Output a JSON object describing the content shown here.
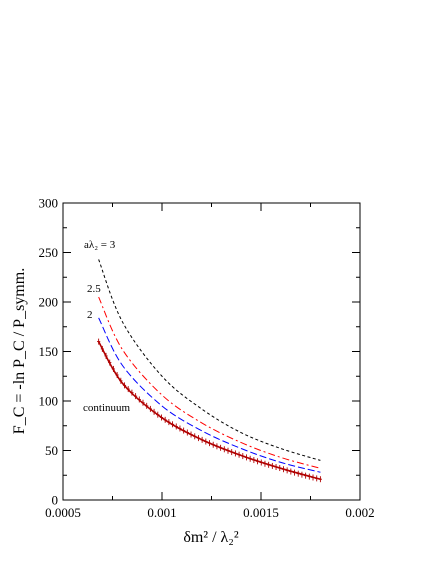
{
  "chart_data": {
    "type": "line",
    "xlabel": "δm² / λ₂²",
    "ylabel": "F_C = -ln P_C / P_symm.",
    "xlim": [
      0.0005,
      0.002
    ],
    "ylim": [
      0,
      300
    ],
    "xticks": [
      "0.0005",
      "0.001",
      "0.0015",
      "0.002"
    ],
    "yticks": [
      "0",
      "50",
      "100",
      "150",
      "200",
      "250",
      "300"
    ],
    "grid": false,
    "legend": "none",
    "annotations": [
      "aλ₂ = 3",
      "2.5",
      "2",
      "continuum"
    ],
    "series": [
      {
        "name": "aλ₂ = 3",
        "color": "#000000",
        "style": "dashed",
        "x": [
          0.00068,
          0.0008,
          0.001,
          0.0012,
          0.0014,
          0.0016,
          0.0018
        ],
        "y": [
          243,
          180,
          125,
          92,
          68,
          52,
          40
        ]
      },
      {
        "name": "2.5",
        "color": "#ff0000",
        "style": "dashdot",
        "x": [
          0.00068,
          0.0008,
          0.001,
          0.0012,
          0.0014,
          0.0016,
          0.0018
        ],
        "y": [
          205,
          152,
          106,
          78,
          58,
          43,
          32
        ]
      },
      {
        "name": "2",
        "color": "#0000ff",
        "style": "longdash",
        "x": [
          0.00068,
          0.0008,
          0.001,
          0.0012,
          0.0014,
          0.0016,
          0.0018
        ],
        "y": [
          184,
          136,
          95,
          70,
          52,
          38,
          28
        ]
      },
      {
        "name": "continuum",
        "color": "#b00000",
        "style": "errorbars",
        "x": [
          0.00068,
          0.0008,
          0.001,
          0.0012,
          0.0014,
          0.0016,
          0.0018
        ],
        "y": [
          160,
          118,
          83,
          61,
          45,
          32,
          21
        ]
      }
    ]
  }
}
